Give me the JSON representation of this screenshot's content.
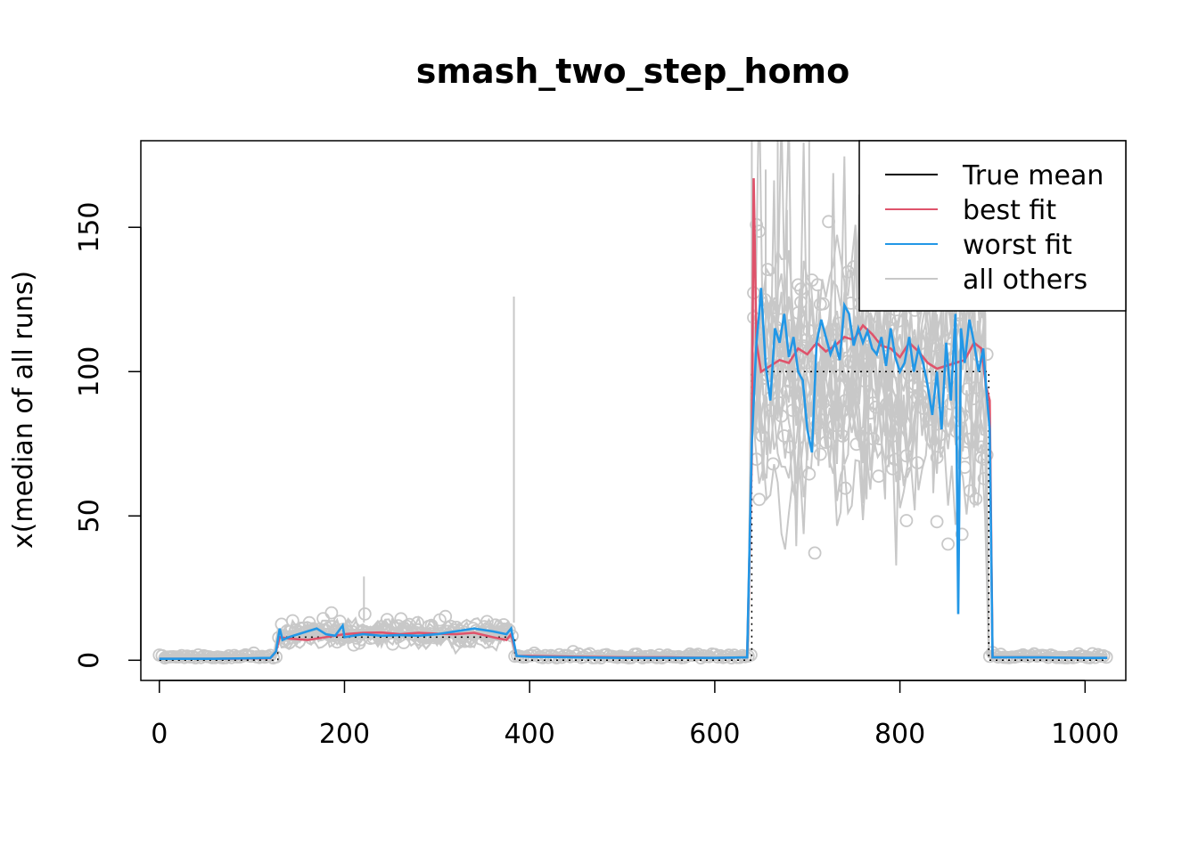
{
  "chart_data": {
    "type": "line",
    "title": "smash_two_step_homo",
    "xlabel": "",
    "ylabel": "x(median of all runs)",
    "xlim": [
      -20,
      1044
    ],
    "ylim": [
      -7,
      180
    ],
    "xticks": [
      0,
      200,
      400,
      600,
      800,
      1000
    ],
    "yticks": [
      0,
      50,
      100,
      150
    ],
    "legend_position": "top-right",
    "grid": false,
    "colors": {
      "true_mean": "#000000",
      "best_fit": "#DF536B",
      "worst_fit": "#2297E6",
      "all_others": "#C8C8C8"
    },
    "series": [
      {
        "name": "True mean",
        "key": "true_mean",
        "style": "dotted",
        "x": [
          0,
          128,
          128,
          384,
          384,
          640,
          640,
          896,
          896,
          1024
        ],
        "y": [
          0,
          0,
          8,
          8,
          0,
          0,
          100,
          100,
          0,
          0
        ]
      },
      {
        "name": "best fit",
        "key": "best_fit",
        "x": [
          0,
          60,
          120,
          126,
          130,
          140,
          160,
          180,
          200,
          220,
          240,
          260,
          280,
          300,
          320,
          340,
          360,
          375,
          380,
          386,
          400,
          450,
          500,
          550,
          600,
          635,
          640,
          642,
          645,
          650,
          660,
          670,
          680,
          690,
          700,
          710,
          720,
          730,
          740,
          750,
          760,
          770,
          780,
          790,
          800,
          810,
          820,
          830,
          840,
          850,
          860,
          870,
          880,
          888,
          893,
          897,
          900,
          950,
          1000,
          1024
        ],
        "y": [
          0.5,
          0.5,
          0.7,
          3,
          8,
          7.5,
          7,
          8,
          9,
          9.5,
          9.6,
          9,
          9.5,
          9.2,
          9,
          9.5,
          8,
          7,
          9,
          1.5,
          1.5,
          1.2,
          1,
          1,
          0.8,
          1,
          70,
          167,
          110,
          100,
          102,
          104,
          103,
          108,
          106,
          110,
          107,
          109,
          112,
          111,
          116,
          113,
          109,
          108,
          105,
          110,
          107,
          103,
          101,
          102,
          103,
          104,
          110,
          108,
          95,
          90,
          1,
          1,
          0.8,
          0.8
        ]
      },
      {
        "name": "worst fit",
        "key": "worst_fit",
        "x": [
          0,
          60,
          120,
          126,
          130,
          133,
          140,
          160,
          170,
          180,
          190,
          198,
          200,
          220,
          240,
          260,
          280,
          300,
          320,
          340,
          360,
          375,
          380,
          386,
          400,
          450,
          500,
          550,
          600,
          635,
          640,
          643,
          645,
          648,
          650,
          655,
          660,
          665,
          670,
          675,
          680,
          685,
          690,
          695,
          700,
          705,
          710,
          715,
          720,
          725,
          730,
          735,
          740,
          745,
          750,
          755,
          760,
          765,
          770,
          775,
          780,
          785,
          790,
          795,
          800,
          805,
          810,
          815,
          820,
          825,
          830,
          835,
          840,
          845,
          850,
          855,
          860,
          863,
          866,
          870,
          875,
          880,
          885,
          890,
          893,
          897,
          900,
          950,
          1000,
          1024
        ],
        "y": [
          0.5,
          0.5,
          0.8,
          3,
          11,
          7,
          8,
          10,
          11,
          9,
          8.5,
          12,
          8,
          9,
          8.5,
          8.7,
          8.5,
          9,
          10,
          11,
          10,
          9,
          11,
          1.5,
          1.2,
          1,
          0.8,
          0.8,
          0.8,
          1,
          75,
          96,
          110,
          120,
          129,
          102,
          90,
          115,
          110,
          120,
          105,
          112,
          100,
          97,
          80,
          72,
          110,
          118,
          112,
          106,
          110,
          104,
          123,
          120,
          109,
          115,
          110,
          114,
          108,
          106,
          112,
          102,
          115,
          105,
          100,
          103,
          112,
          100,
          108,
          103,
          95,
          85,
          100,
          80,
          110,
          90,
          120,
          16,
          115,
          103,
          118,
          110,
          100,
          108,
          95,
          80,
          1,
          1,
          0.8,
          0.8
        ]
      },
      {
        "name": "all others",
        "key": "all_others",
        "x": [],
        "y": []
      }
    ]
  }
}
